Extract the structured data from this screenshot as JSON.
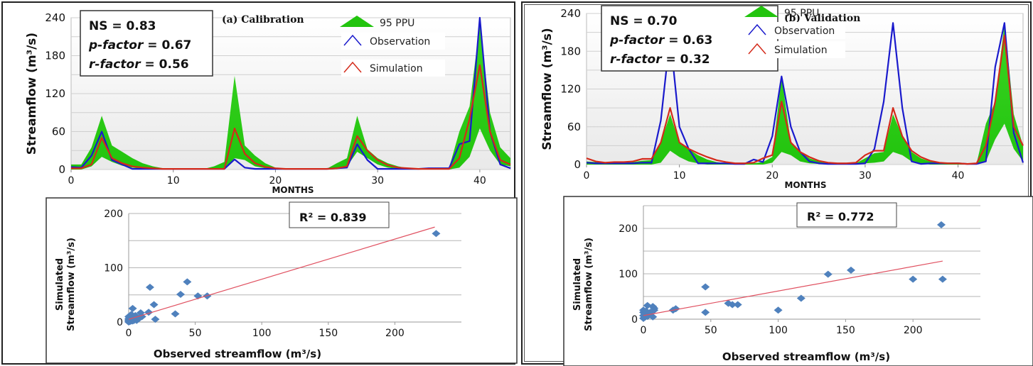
{
  "colors": {
    "ppu_fill": "#22c40e",
    "observation": "#1a1acc",
    "simulation": "#d42a1a",
    "scatter_point": "#4f81bd",
    "trendline": "#e05060",
    "grid": "#cfcfcf",
    "plot_bg_top": "#ffffff",
    "plot_bg_bottom": "#e9e9e9"
  },
  "chart_data": [
    {
      "id": "calibration-timeseries",
      "type": "area",
      "title": "(a) Calibration",
      "xlabel": "MONTHS",
      "ylabel": "Streamflow (m³/s)",
      "xlim": [
        0,
        43
      ],
      "ylim": [
        0,
        240
      ],
      "xticks": [
        0,
        10,
        20,
        30,
        40
      ],
      "yticks": [
        0,
        60,
        120,
        180,
        240
      ],
      "grid": true,
      "legend": [
        "95 PPU",
        "Observation",
        "Simulation"
      ],
      "legend_position": "top-right",
      "stats": {
        "ns": "NS = 0.83",
        "p_label": "p-factor",
        "p_value": " = 0.67",
        "r_label": "r-factor",
        "r_value": " = 0.56"
      },
      "x": [
        0,
        1,
        2,
        3,
        4,
        5,
        6,
        7,
        8,
        9,
        10,
        11,
        12,
        13,
        14,
        15,
        16,
        17,
        18,
        19,
        20,
        21,
        22,
        23,
        24,
        25,
        26,
        27,
        28,
        29,
        30,
        31,
        32,
        33,
        34,
        35,
        36,
        37,
        38,
        39,
        40,
        41,
        42,
        43
      ],
      "series": [
        {
          "name": "95 PPU upper",
          "values": [
            8,
            8,
            35,
            85,
            38,
            28,
            18,
            10,
            5,
            2,
            1,
            1,
            1,
            1,
            5,
            12,
            148,
            38,
            22,
            10,
            3,
            1,
            1,
            1,
            1,
            1,
            10,
            18,
            85,
            32,
            18,
            10,
            5,
            2,
            1,
            1,
            2,
            3,
            60,
            100,
            230,
            90,
            35,
            18
          ]
        },
        {
          "name": "95 PPU lower",
          "values": [
            0,
            0,
            5,
            20,
            12,
            6,
            3,
            1,
            0,
            0,
            0,
            0,
            0,
            0,
            0,
            0,
            18,
            15,
            5,
            2,
            0,
            0,
            0,
            0,
            0,
            0,
            3,
            5,
            28,
            18,
            8,
            3,
            1,
            0,
            0,
            0,
            0,
            0,
            3,
            20,
            65,
            30,
            8,
            5
          ]
        },
        {
          "name": "Observation",
          "values": [
            4,
            3,
            22,
            60,
            15,
            8,
            1,
            1,
            1,
            1,
            1,
            1,
            1,
            1,
            1,
            1,
            16,
            3,
            1,
            1,
            1,
            1,
            1,
            1,
            1,
            1,
            2,
            3,
            40,
            15,
            1,
            1,
            1,
            1,
            1,
            2,
            2,
            2,
            40,
            45,
            240,
            60,
            8,
            2
          ]
        },
        {
          "name": "Simulation",
          "values": [
            2,
            2,
            8,
            50,
            18,
            10,
            5,
            3,
            2,
            1,
            1,
            1,
            1,
            1,
            1,
            1,
            65,
            25,
            10,
            4,
            2,
            1,
            1,
            1,
            1,
            1,
            2,
            5,
            53,
            30,
            15,
            7,
            3,
            2,
            1,
            1,
            1,
            1,
            18,
            80,
            165,
            60,
            15,
            8
          ]
        }
      ]
    },
    {
      "id": "validation-timeseries",
      "type": "area",
      "title": "(b) Validation",
      "xlabel": "MONTHS",
      "ylabel": "Streamflow (m³/s)",
      "xlim": [
        0,
        47
      ],
      "ylim": [
        0,
        240
      ],
      "xticks": [
        0,
        10,
        20,
        30,
        40
      ],
      "yticks": [
        0,
        60,
        120,
        180,
        240
      ],
      "grid": true,
      "legend": [
        "95 PPU",
        "Observation",
        "Simulation"
      ],
      "legend_position": "top-right",
      "stats": {
        "ns": "NS = 0.70",
        "p_label": "p-factor",
        "p_value": " = 0.63",
        "r_label": "r-factor",
        "r_value": " = 0.32"
      },
      "x": [
        0,
        1,
        2,
        3,
        4,
        5,
        6,
        7,
        8,
        9,
        10,
        11,
        12,
        13,
        14,
        15,
        16,
        17,
        18,
        19,
        20,
        21,
        22,
        23,
        24,
        25,
        26,
        27,
        28,
        29,
        30,
        31,
        32,
        33,
        34,
        35,
        36,
        37,
        38,
        39,
        40,
        41,
        42,
        43,
        44,
        45,
        46,
        47
      ],
      "series": [
        {
          "name": "95 PPU upper",
          "values": [
            5,
            4,
            3,
            3,
            3,
            4,
            6,
            7,
            35,
            80,
            35,
            25,
            15,
            8,
            4,
            2,
            1,
            1,
            2,
            4,
            12,
            140,
            35,
            20,
            10,
            5,
            2,
            1,
            1,
            2,
            10,
            18,
            20,
            80,
            45,
            20,
            10,
            5,
            3,
            2,
            2,
            1,
            2,
            65,
            100,
            225,
            80,
            30
          ]
        },
        {
          "name": "95 PPU lower",
          "values": [
            0,
            0,
            0,
            0,
            0,
            0,
            0,
            0,
            3,
            22,
            12,
            5,
            2,
            0,
            0,
            0,
            0,
            0,
            0,
            0,
            3,
            20,
            15,
            5,
            2,
            1,
            0,
            0,
            0,
            0,
            2,
            3,
            5,
            20,
            15,
            5,
            2,
            0,
            0,
            0,
            0,
            0,
            0,
            5,
            40,
            65,
            25,
            5
          ]
        },
        {
          "name": "Observation",
          "values": [
            3,
            2,
            2,
            2,
            2,
            2,
            3,
            3,
            70,
            205,
            60,
            25,
            2,
            2,
            2,
            2,
            1,
            1,
            8,
            4,
            45,
            140,
            60,
            20,
            5,
            2,
            1,
            1,
            1,
            1,
            2,
            25,
            100,
            225,
            90,
            5,
            1,
            2,
            2,
            2,
            2,
            1,
            1,
            5,
            155,
            225,
            50,
            3
          ]
        },
        {
          "name": "Simulation",
          "values": [
            10,
            5,
            3,
            4,
            4,
            5,
            9,
            9,
            35,
            90,
            35,
            25,
            18,
            12,
            7,
            4,
            2,
            2,
            3,
            10,
            15,
            100,
            35,
            20,
            12,
            6,
            3,
            2,
            2,
            3,
            15,
            22,
            22,
            90,
            45,
            22,
            12,
            6,
            3,
            2,
            2,
            1,
            2,
            30,
            100,
            205,
            60,
            30
          ]
        }
      ]
    },
    {
      "id": "calibration-scatter",
      "type": "scatter",
      "xlabel": "Observed streamflow (m³/s)",
      "ylabel_line1": "Simulated",
      "ylabel_line2": "Streamflow (m³/s)",
      "xlim": [
        0,
        250
      ],
      "ylim": [
        0,
        200
      ],
      "xticks": [
        0,
        50,
        100,
        150,
        200
      ],
      "yticks": [
        0,
        100,
        200
      ],
      "grid": true,
      "r2_label": "R² = 0.839",
      "trendline": {
        "x": [
          0,
          230
        ],
        "y": [
          5,
          175
        ]
      },
      "points": [
        [
          0,
          0
        ],
        [
          0,
          2
        ],
        [
          0,
          4
        ],
        [
          0,
          6
        ],
        [
          0,
          10
        ],
        [
          1,
          1
        ],
        [
          1,
          3
        ],
        [
          1,
          8
        ],
        [
          2,
          2
        ],
        [
          2,
          5
        ],
        [
          2,
          14
        ],
        [
          3,
          2
        ],
        [
          3,
          4
        ],
        [
          3,
          25
        ],
        [
          4,
          3
        ],
        [
          4,
          8
        ],
        [
          5,
          5
        ],
        [
          5,
          12
        ],
        [
          6,
          3
        ],
        [
          7,
          6
        ],
        [
          8,
          7
        ],
        [
          9,
          17
        ],
        [
          10,
          10
        ],
        [
          15,
          18
        ],
        [
          16,
          64
        ],
        [
          19,
          32
        ],
        [
          20,
          5
        ],
        [
          35,
          15
        ],
        [
          39,
          51
        ],
        [
          44,
          74
        ],
        [
          52,
          48
        ],
        [
          59,
          48
        ],
        [
          231,
          163
        ]
      ]
    },
    {
      "id": "validation-scatter",
      "type": "scatter",
      "xlabel": "Observed streamflow (m³/s)",
      "ylabel_line1": "Simulated",
      "ylabel_line2": "Streamflow (m³/s)",
      "xlim": [
        0,
        250
      ],
      "ylim": [
        0,
        250
      ],
      "xticks": [
        0,
        50,
        100,
        150,
        200
      ],
      "yticks": [
        0,
        100,
        200
      ],
      "grid": true,
      "r2_label": "R² = 0.772",
      "trendline": {
        "x": [
          0,
          222
        ],
        "y": [
          8,
          128
        ]
      },
      "points": [
        [
          0,
          2
        ],
        [
          0,
          8
        ],
        [
          0,
          15
        ],
        [
          0,
          20
        ],
        [
          1,
          4
        ],
        [
          1,
          12
        ],
        [
          2,
          18
        ],
        [
          3,
          6
        ],
        [
          3,
          30
        ],
        [
          4,
          10
        ],
        [
          5,
          15
        ],
        [
          7,
          5
        ],
        [
          7,
          28
        ],
        [
          8,
          20
        ],
        [
          8,
          24
        ],
        [
          22,
          20
        ],
        [
          24,
          23
        ],
        [
          46,
          15
        ],
        [
          46,
          71
        ],
        [
          63,
          35
        ],
        [
          66,
          32
        ],
        [
          70,
          32
        ],
        [
          100,
          20
        ],
        [
          117,
          46
        ],
        [
          137,
          99
        ],
        [
          154,
          108
        ],
        [
          200,
          88
        ],
        [
          222,
          88
        ],
        [
          221,
          208
        ]
      ]
    }
  ]
}
